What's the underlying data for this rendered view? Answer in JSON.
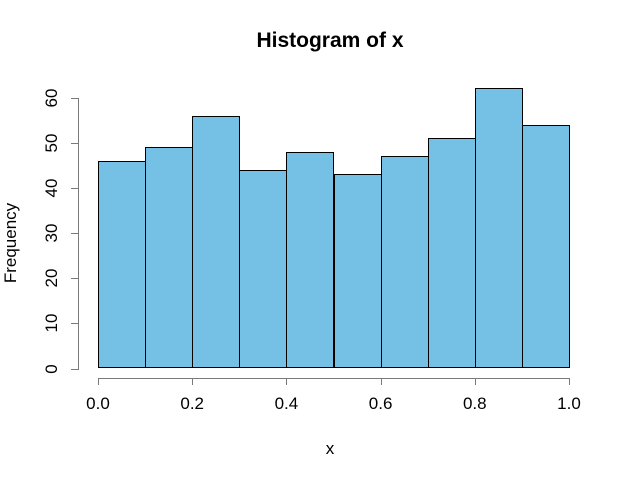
{
  "chart_data": {
    "type": "bar",
    "chart_style": "histogram",
    "title": "Histogram of x",
    "xlabel": "x",
    "ylabel": "Frequency",
    "bin_edges": [
      0.0,
      0.1,
      0.2,
      0.3,
      0.4,
      0.5,
      0.6,
      0.7,
      0.8,
      0.9,
      1.0
    ],
    "values": [
      46,
      49,
      56,
      44,
      48,
      43,
      47,
      51,
      62,
      54
    ],
    "x_ticks": [
      0.0,
      0.2,
      0.4,
      0.6,
      0.8,
      1.0
    ],
    "x_tick_labels": [
      "0.0",
      "0.2",
      "0.4",
      "0.6",
      "0.8",
      "1.0"
    ],
    "y_ticks": [
      0,
      10,
      20,
      30,
      40,
      50,
      60
    ],
    "y_tick_labels": [
      "0",
      "10",
      "20",
      "30",
      "40",
      "50",
      "60"
    ],
    "xlim": [
      0.0,
      1.0
    ],
    "ylim": [
      0,
      62
    ],
    "grid": false,
    "legend": null,
    "colors": {
      "bar_fill": "#74C1E5",
      "bar_border": "#000000",
      "axis": "#7a7a7a",
      "text": "#000000",
      "background": "#FFFFFF"
    }
  }
}
